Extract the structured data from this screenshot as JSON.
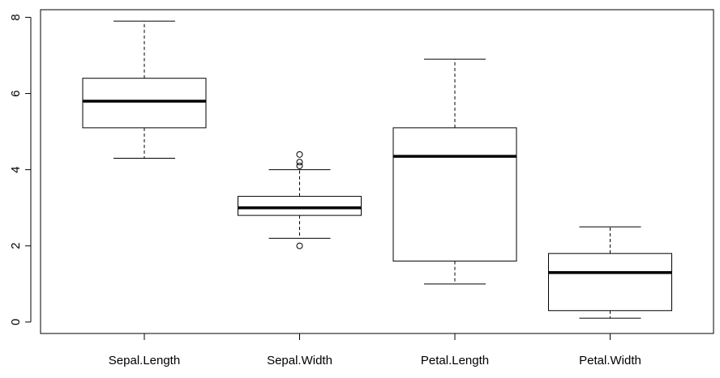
{
  "chart_data": {
    "type": "boxplot",
    "categories": [
      "Sepal.Length",
      "Sepal.Width",
      "Petal.Length",
      "Petal.Width"
    ],
    "boxes": [
      {
        "label": "Sepal.Length",
        "whisker_low": 4.3,
        "q1": 5.1,
        "median": 5.8,
        "q3": 6.4,
        "whisker_high": 7.9,
        "outliers": []
      },
      {
        "label": "Sepal.Width",
        "whisker_low": 2.2,
        "q1": 2.8,
        "median": 3.0,
        "q3": 3.3,
        "whisker_high": 4.0,
        "outliers": [
          2.0,
          4.1,
          4.2,
          4.4
        ]
      },
      {
        "label": "Petal.Length",
        "whisker_low": 1.0,
        "q1": 1.6,
        "median": 4.35,
        "q3": 5.1,
        "whisker_high": 6.9,
        "outliers": []
      },
      {
        "label": "Petal.Width",
        "whisker_low": 0.1,
        "q1": 0.3,
        "median": 1.3,
        "q3": 1.8,
        "whisker_high": 2.5,
        "outliers": []
      }
    ],
    "y_ticks": [
      0,
      2,
      4,
      6,
      8
    ],
    "ylim": [
      -0.3,
      8.2
    ],
    "title": "",
    "xlabel": "",
    "ylabel": "",
    "grid": false,
    "colors": {
      "box_fill": "#ffffff",
      "stroke": "#000000"
    }
  }
}
